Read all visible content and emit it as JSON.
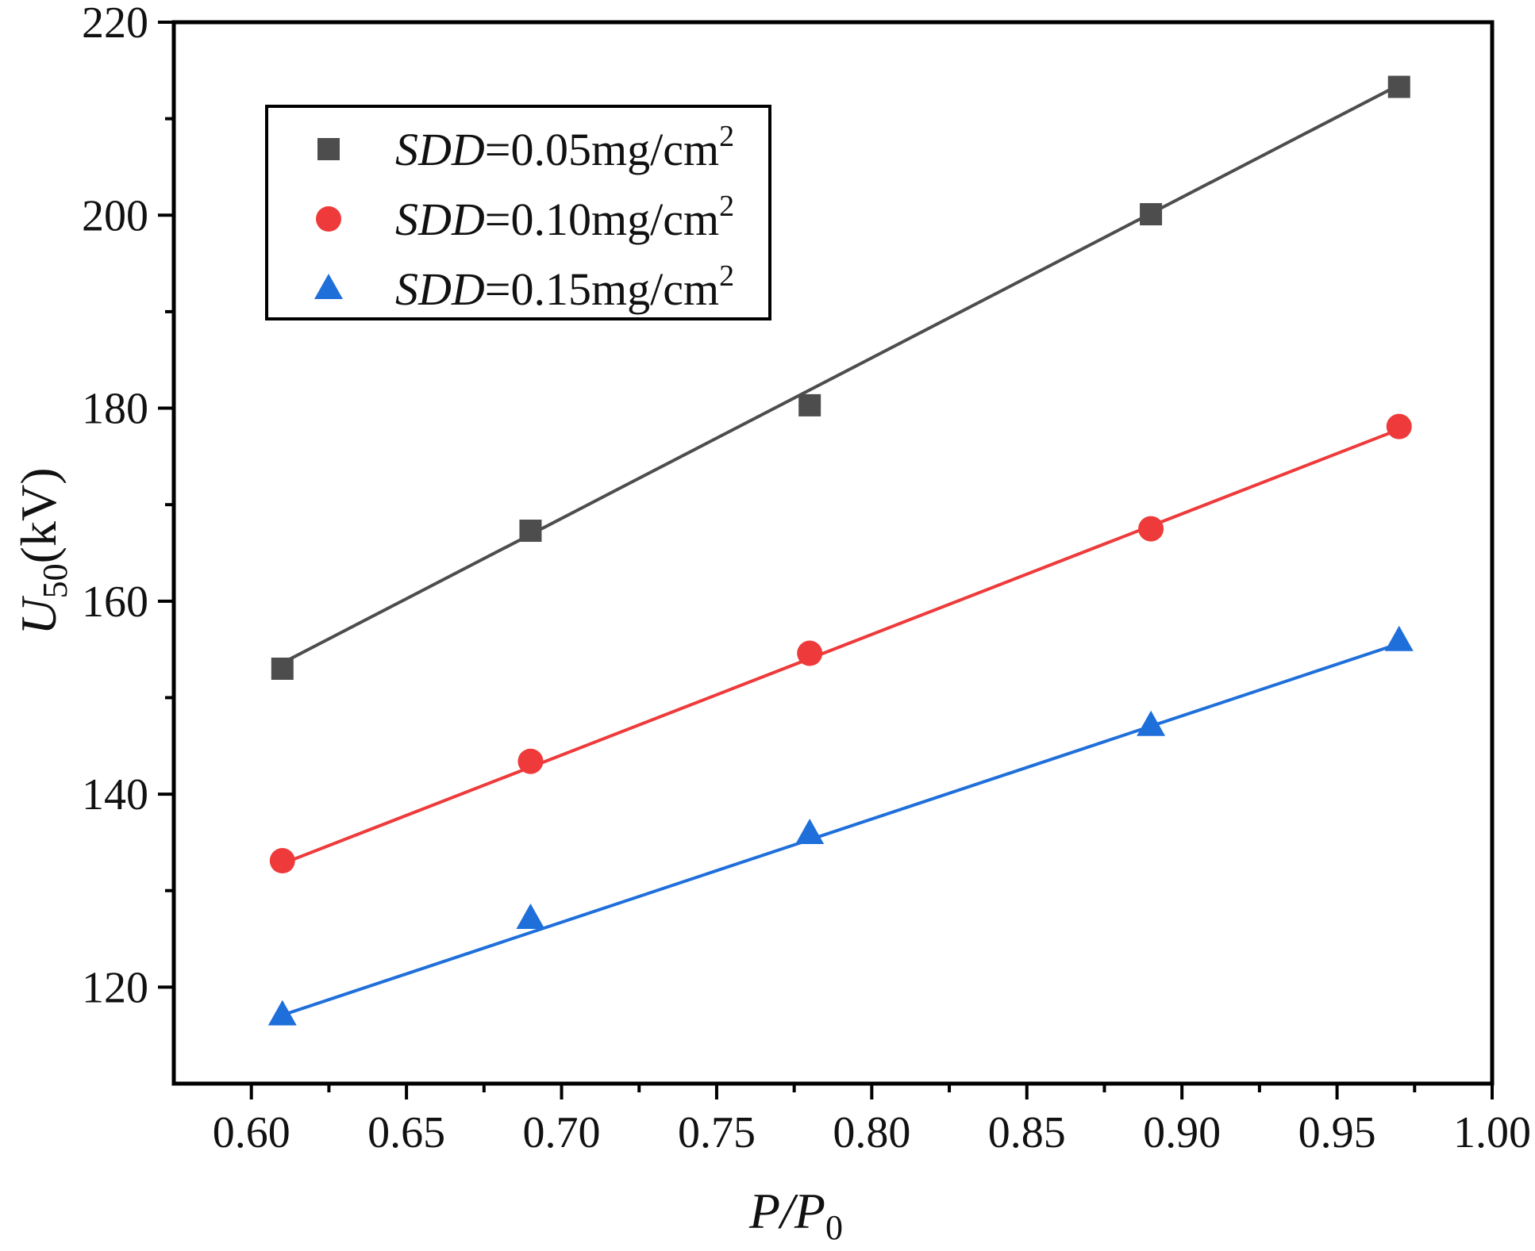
{
  "chart_data": {
    "type": "scatter",
    "title": "",
    "xlabel": {
      "main": "P/P",
      "sub": "0"
    },
    "ylabel": {
      "main": "U",
      "sub": "50",
      "rest": "(kV)"
    },
    "xlim": [
      0.575,
      1.0
    ],
    "ylim": [
      110,
      220
    ],
    "xticks": [
      0.6,
      0.65,
      0.7,
      0.75,
      0.8,
      0.85,
      0.9,
      0.95,
      1.0
    ],
    "xtick_labels": [
      "0.60",
      "0.65",
      "0.70",
      "0.75",
      "0.80",
      "0.85",
      "0.90",
      "0.95",
      "1.00"
    ],
    "yticks": [
      120,
      140,
      160,
      180,
      200,
      220
    ],
    "ytick_labels": [
      "120",
      "140",
      "160",
      "180",
      "200",
      "220"
    ],
    "x_minor_ticks": [
      0.625,
      0.675,
      0.725,
      0.775,
      0.825,
      0.875,
      0.925,
      0.975
    ],
    "y_minor_ticks": [
      130,
      150,
      170,
      190,
      210
    ],
    "legend_position": "top-left",
    "x": [
      0.61,
      0.69,
      0.78,
      0.89,
      0.97
    ],
    "series": [
      {
        "name": "SDD=0.05mg/cm2",
        "label_italic": "SDD",
        "label_rest": "=0.05mg/cm",
        "label_sup": "2",
        "marker": "square",
        "color": "#4d4d4d",
        "values": [
          153.0,
          167.3,
          180.3,
          200.1,
          213.3
        ],
        "fit": [
          153.6,
          213.5
        ]
      },
      {
        "name": "SDD=0.10mg/cm2",
        "label_italic": "SDD",
        "label_rest": "=0.10mg/cm",
        "label_sup": "2",
        "marker": "circle",
        "color": "#ee3a3a",
        "values": [
          133.1,
          143.4,
          154.6,
          167.5,
          178.1
        ],
        "fit": [
          132.8,
          177.8
        ]
      },
      {
        "name": "SDD=0.15mg/cm2",
        "label_italic": "SDD",
        "label_rest": "=0.15mg/cm",
        "label_sup": "2",
        "marker": "triangle",
        "color": "#1f6fdb",
        "values": [
          117.1,
          127.1,
          135.9,
          147.1,
          155.9
        ],
        "fit": [
          117.1,
          155.6
        ]
      }
    ]
  }
}
